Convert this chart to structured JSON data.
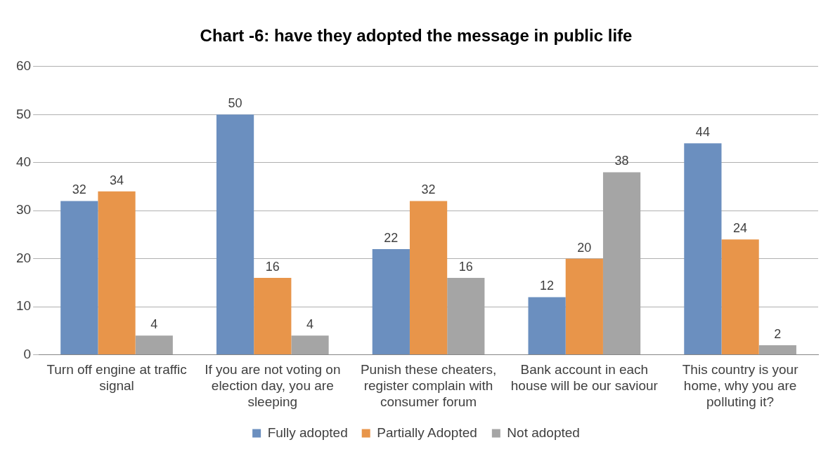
{
  "chart_data": {
    "type": "bar",
    "title": "Chart -6: have they adopted the message in public life",
    "categories": [
      "Turn off engine at traffic signal",
      "If you are not voting on election day, you are sleeping",
      "Punish these cheaters, register complain with consumer forum",
      "Bank account in each house will be our saviour",
      "This country is your home, why you are polluting it?"
    ],
    "series": [
      {
        "name": "Fully adopted",
        "color": "#6b8fbf",
        "values": [
          32,
          50,
          22,
          12,
          44
        ]
      },
      {
        "name": "Partially Adopted",
        "color": "#e8954a",
        "values": [
          34,
          16,
          32,
          20,
          24
        ]
      },
      {
        "name": "Not adopted",
        "color": "#a5a5a5",
        "values": [
          4,
          4,
          16,
          38,
          2
        ]
      }
    ],
    "ylim": [
      0,
      60
    ],
    "yticks": [
      0,
      10,
      20,
      30,
      40,
      50,
      60
    ],
    "grid": "y",
    "legend": "bottom",
    "data_labels": true
  }
}
